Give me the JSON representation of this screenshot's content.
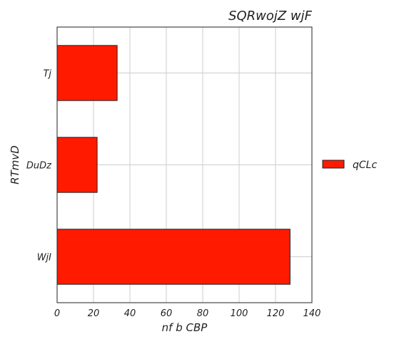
{
  "chart_data": {
    "type": "bar",
    "orientation": "horizontal",
    "title": "SQRwojZ wjF",
    "xlabel": "nf b CBP",
    "ylabel": "RTmvD",
    "categories": [
      "Tj",
      "DuDz",
      "WjI"
    ],
    "series": [
      {
        "name": "qCLc",
        "values": [
          33,
          22,
          128
        ],
        "color": "#ff1a00"
      }
    ],
    "xlim": [
      0,
      140
    ],
    "xticks": [
      "0",
      "20",
      "40",
      "60",
      "80",
      "100",
      "120",
      "140"
    ],
    "grid": true,
    "legend_position": "right"
  }
}
